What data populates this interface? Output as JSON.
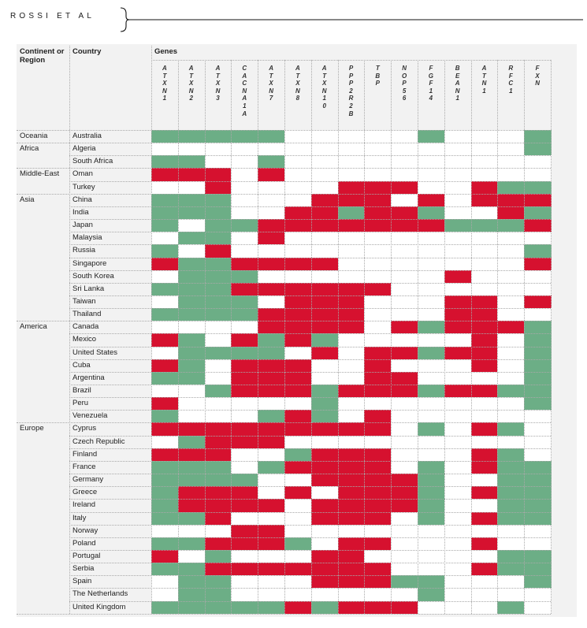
{
  "running_head": "ROSSI  ET  AL",
  "table": {
    "col_continent": "Continent or Region",
    "col_country": "Country",
    "col_genes": "Genes",
    "genes": [
      "ATXN1",
      "ATXN2",
      "ATXN3",
      "CACNA1A",
      "ATXN7",
      "ATXN8",
      "ATXN10",
      "PPP2R2B",
      "TBP",
      "NOP56",
      "FGF14",
      "BEAN1",
      "ATN1",
      "RFC1",
      "FXN"
    ],
    "legend_colors": {
      "g": "#6cae86",
      "r": "#d6112f",
      "w": "#ffffff"
    },
    "rows": [
      {
        "continent": "Oceania",
        "country": "Australia",
        "cells": "gggggwwwwwgwwwg"
      },
      {
        "continent": "Africa",
        "country": "Algeria",
        "cells": "wwwwwwwwwwwwwwg"
      },
      {
        "continent": "",
        "country": "South Africa",
        "cells": "ggwwgwwwwwwwwww"
      },
      {
        "continent": "Middle-East",
        "country": "Oman",
        "cells": "rrrwrwwwwwwwwww"
      },
      {
        "continent": "",
        "country": "Turkey",
        "cells": "wwrwwwwrrrwwrgg"
      },
      {
        "continent": "Asia",
        "country": "China",
        "cells": "gggwwwrrrwrwrrr"
      },
      {
        "continent": "",
        "country": "India",
        "cells": "gggwwrrgrrgwwrg"
      },
      {
        "continent": "",
        "country": "Japan",
        "cells": "gwggrrrrrrrgggr"
      },
      {
        "continent": "",
        "country": "Malaysia",
        "cells": "wggwrwwwwwwwwww"
      },
      {
        "continent": "",
        "country": "Russia",
        "cells": "gwrwwwwwwwwwwwg"
      },
      {
        "continent": "",
        "country": "Singapore",
        "cells": "rggrrrrwwwwwwwr"
      },
      {
        "continent": "",
        "country": "South Korea",
        "cells": "wgggwwwwwwwrwww"
      },
      {
        "continent": "",
        "country": "Sri Lanka",
        "cells": "gggrrrrrrwwwwww"
      },
      {
        "continent": "",
        "country": "Taiwan",
        "cells": "wgggwrrrwwwrrwr"
      },
      {
        "continent": "",
        "country": "Thailand",
        "cells": "ggggrrrrwwwrrww"
      },
      {
        "continent": "America",
        "country": "Canada",
        "cells": "wwwwrrrrwrgrrrg"
      },
      {
        "continent": "",
        "country": "Mexico",
        "cells": "rgwrgrgwwwwwrwg"
      },
      {
        "continent": "",
        "country": "United States",
        "cells": "wggggwrwrrgrrwg"
      },
      {
        "continent": "",
        "country": "Cuba",
        "cells": "rgwrrrwwrwwwrwg"
      },
      {
        "continent": "",
        "country": "Argentina",
        "cells": "ggwrrrwwrrwwwwg"
      },
      {
        "continent": "",
        "country": "Brazil",
        "cells": "wwgrrrgrrrgrrgg"
      },
      {
        "continent": "",
        "country": "Peru",
        "cells": "rwwwwwgwwwwwwwg"
      },
      {
        "continent": "",
        "country": "Venezuela",
        "cells": "gwwwgrgwrwwwwww"
      },
      {
        "continent": "Europe",
        "country": "Cyprus",
        "cells": "rrrrrrrrrwgwrgw"
      },
      {
        "continent": "",
        "country": "Czech Republic",
        "cells": "wgrrrwwwwwwwwww"
      },
      {
        "continent": "",
        "country": "Finland",
        "cells": "rrrwwgrrrwwwrgw"
      },
      {
        "continent": "",
        "country": "France",
        "cells": "gggwgrrrrwgwrgg"
      },
      {
        "continent": "",
        "country": "Germany",
        "cells": "ggggwwrrrrgwwgg"
      },
      {
        "continent": "",
        "country": "Greece",
        "cells": "grrrwrwrrrgwrgg"
      },
      {
        "continent": "",
        "country": "Ireland",
        "cells": "grrrrwrrrrgwwgg"
      },
      {
        "continent": "",
        "country": "Italy",
        "cells": "ggrwwwrrrwgwrgg"
      },
      {
        "continent": "",
        "country": "Norway",
        "cells": "wwwrrwwwwwwwwww"
      },
      {
        "continent": "",
        "country": "Poland",
        "cells": "ggrrrgwrrwwwrww"
      },
      {
        "continent": "",
        "country": "Portugal",
        "cells": "rwgwwwrrwwwwwgg"
      },
      {
        "continent": "",
        "country": "Serbia",
        "cells": "ggrrrrrrrwwwrgg"
      },
      {
        "continent": "",
        "country": "Spain",
        "cells": "wggwwwrrrggwwwg"
      },
      {
        "continent": "",
        "country": "The Netherlands",
        "cells": "wggwwwwwwwgwwww"
      },
      {
        "continent": "",
        "country": "United Kingdom",
        "cells": "gggggrgrrrwwwgw"
      }
    ]
  }
}
